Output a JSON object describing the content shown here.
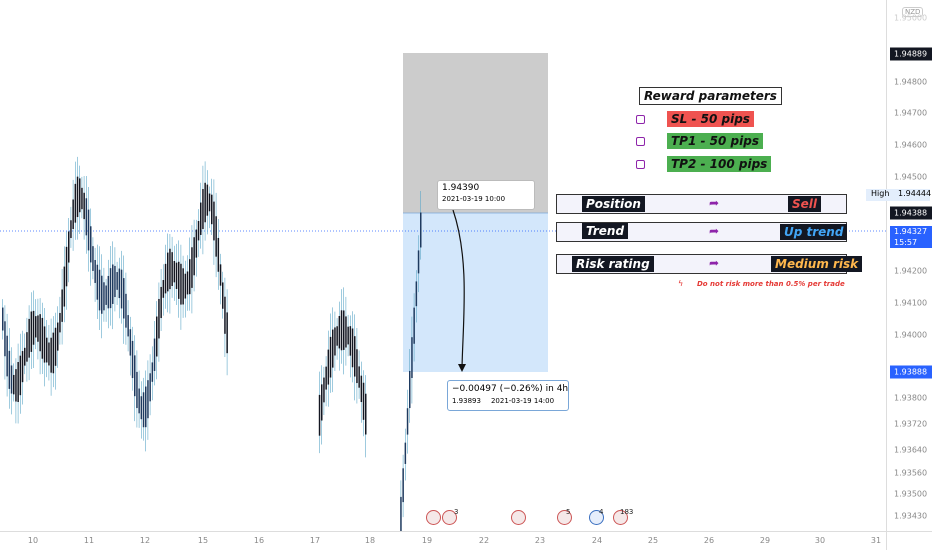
{
  "currency": "NZD",
  "price_axis": {
    "labels": [
      "1.95000",
      "1.94889",
      "1.94800",
      "1.94700",
      "1.94600",
      "1.94500",
      "1.94444",
      "1.94388",
      "1.94327",
      "1.94200",
      "1.94100",
      "1.94000",
      "1.93888",
      "1.93800",
      "1.93720",
      "1.93640",
      "1.93560",
      "1.93500",
      "1.93430"
    ],
    "high_label": "High",
    "countdown": "15:57"
  },
  "time_axis": {
    "labels": [
      "10",
      "11",
      "12",
      "15",
      "16",
      "17",
      "18",
      "19",
      "22",
      "23",
      "24",
      "25",
      "26",
      "29",
      "30",
      "31"
    ]
  },
  "price_tooltip": {
    "price": "1.94390",
    "time": "2021-03-19 10:00"
  },
  "measure": {
    "change": "−0.00497 (−0.26%) in 4h",
    "price": "1.93893",
    "time": "2021-03-19 14:00"
  },
  "reward": {
    "title": "Reward parameters",
    "items": [
      "SL - 50 pips",
      "TP1 - 50 pips",
      "TP2 - 100 pips"
    ]
  },
  "panels": [
    {
      "label": "Position",
      "value": "Sell"
    },
    {
      "label": "Trend",
      "value": "Up trend"
    },
    {
      "label": "Risk rating",
      "value": "Medium risk"
    }
  ],
  "warning": "Do not risk more than 0.5% per trade",
  "events": [
    "3",
    "5",
    "4",
    "183"
  ]
}
